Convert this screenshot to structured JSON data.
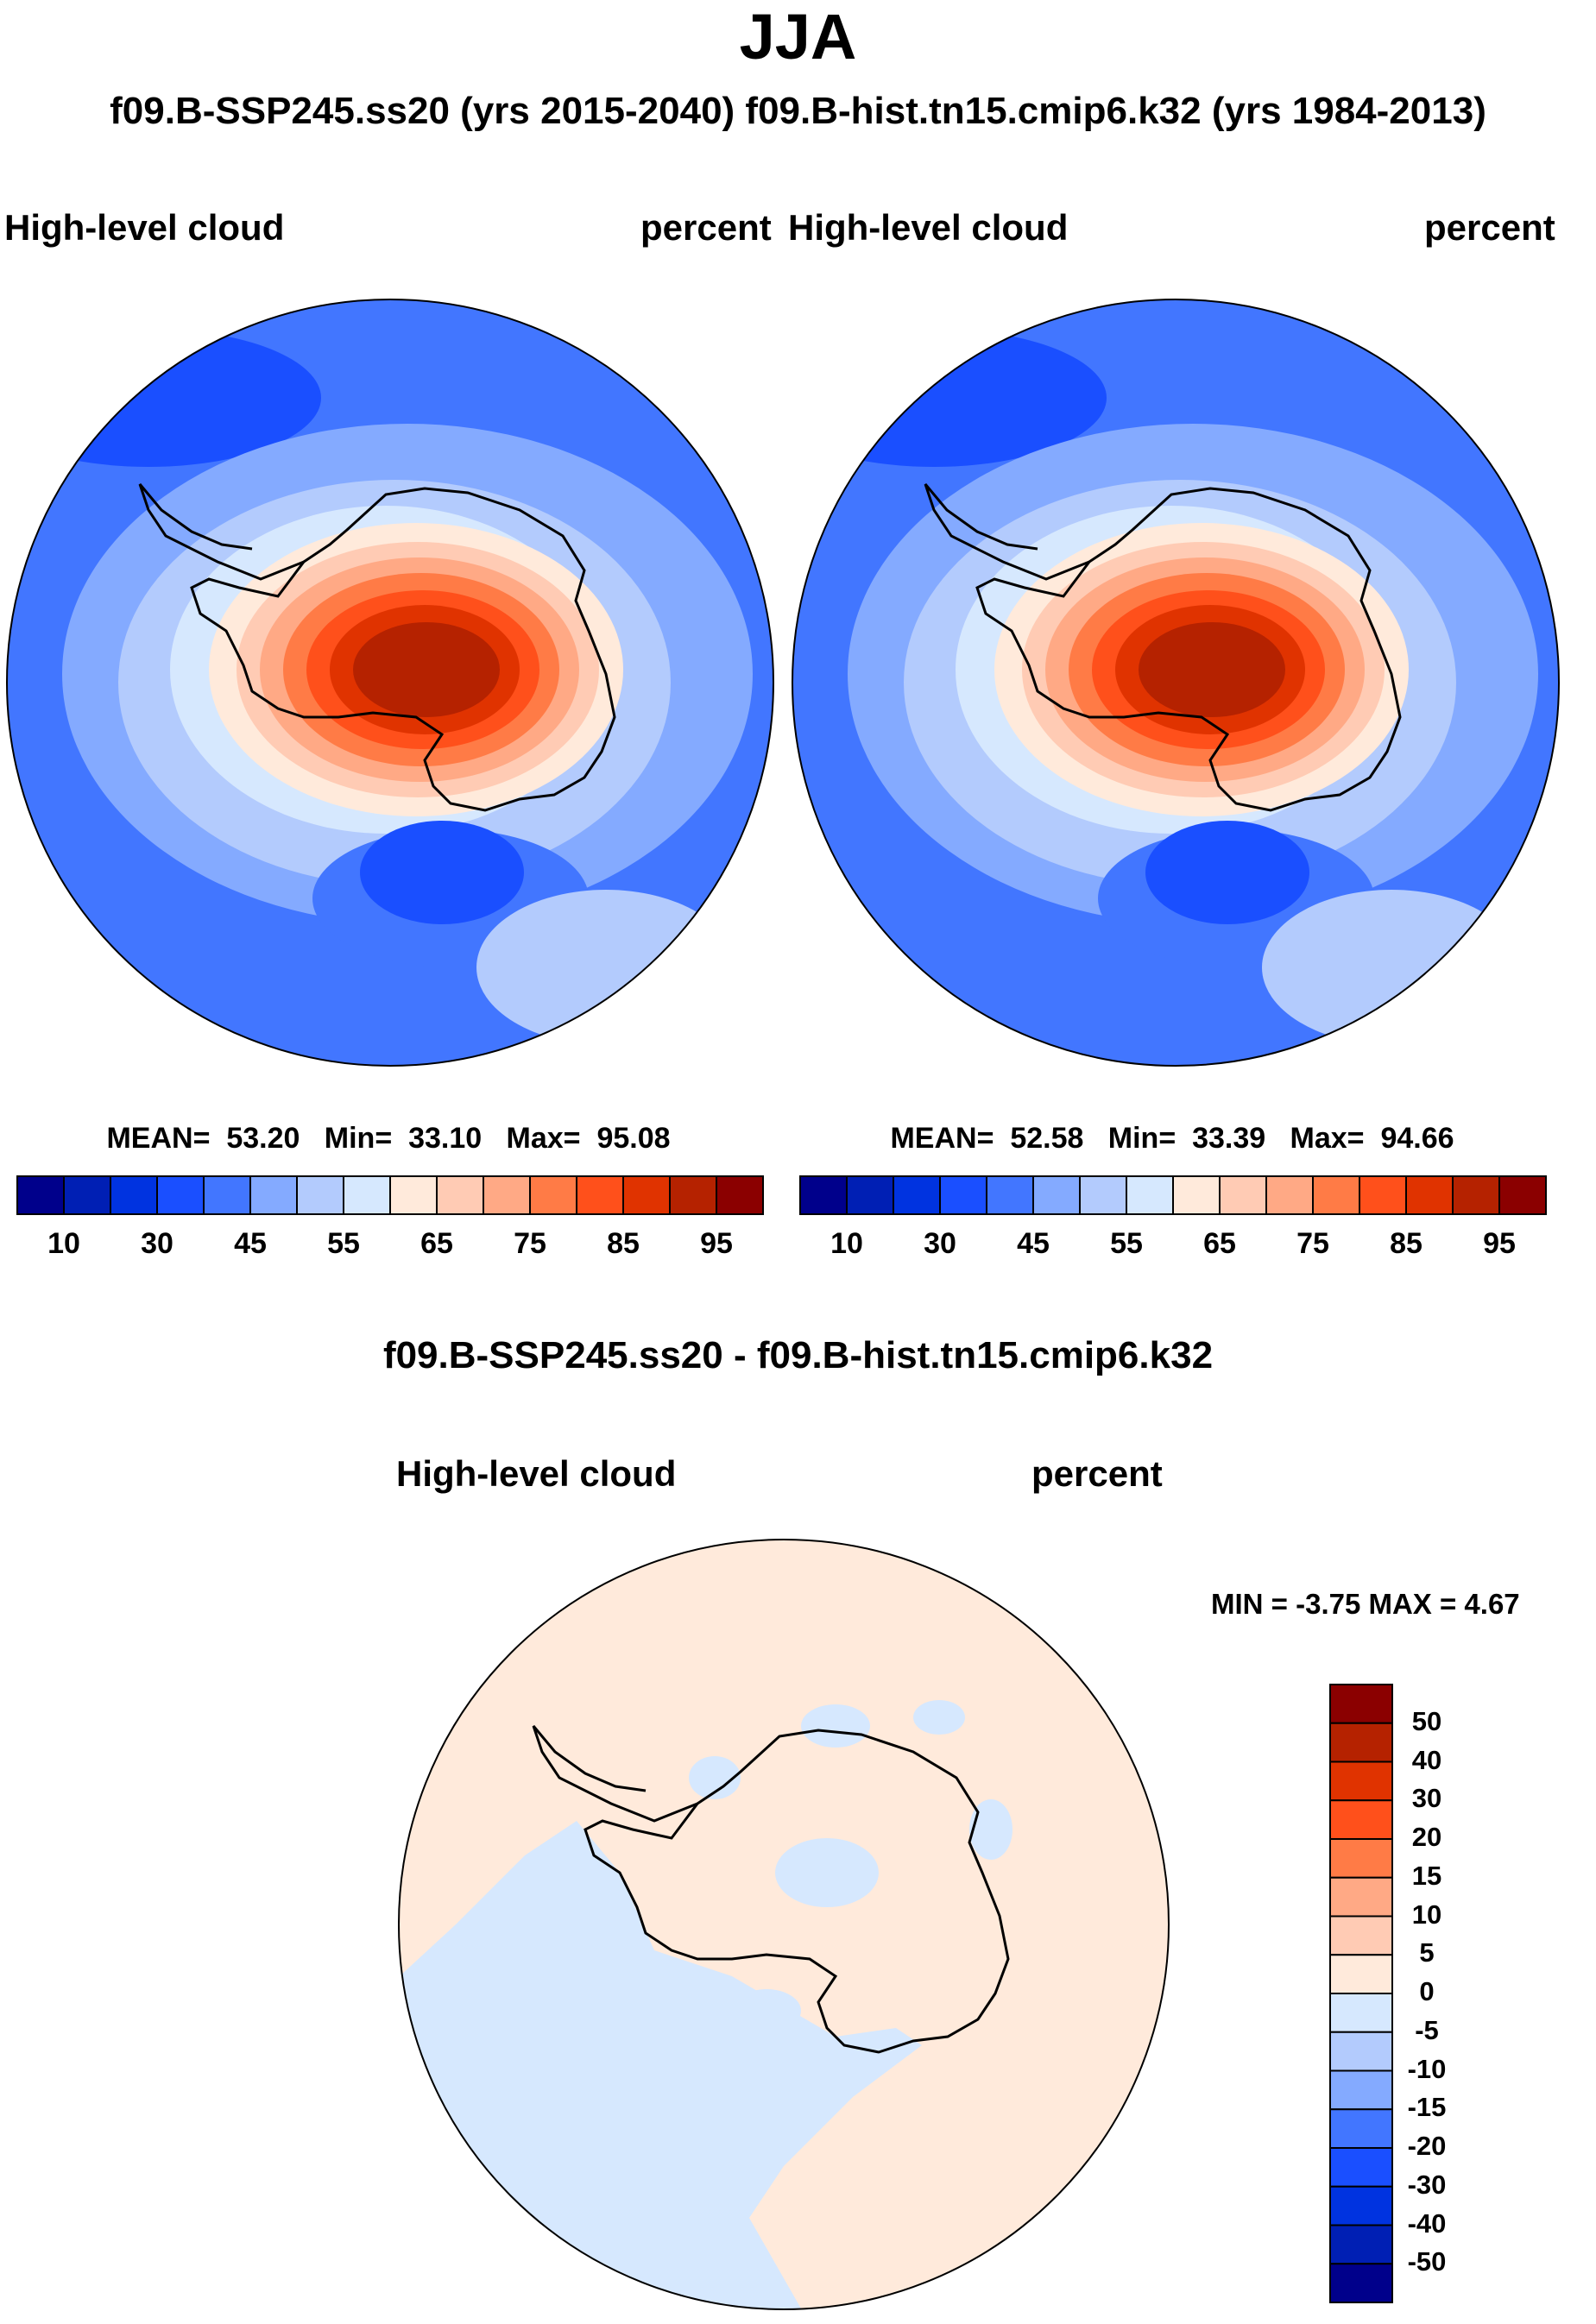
{
  "title": "JJA",
  "subtitle": "f09.B-SSP245.ss20 (yrs 2015-2040)  f09.B-hist.tn15.cmip6.k32 (yrs 1984-2013)",
  "colors": [
    "#00008b",
    "#001fb4",
    "#0033e0",
    "#1a4fff",
    "#4276ff",
    "#84aaff",
    "#b3cbfd",
    "#d6e8fe",
    "#ffeadb",
    "#ffcbb4",
    "#ffa985",
    "#ff7b46",
    "#ff501b",
    "#e03300",
    "#b52200",
    "#8b0000"
  ],
  "chart_data": [
    {
      "type": "heatmap",
      "projection": "south-polar stereographic",
      "case": "f09.B-SSP245.ss20 (yrs 2015-2040)",
      "left_label": "High-level cloud",
      "right_label": "percent",
      "stats": {
        "mean_label": "MEAN=",
        "mean": "53.20",
        "min_label": "Min=",
        "min": "33.10",
        "max_label": "Max=",
        "max": "95.08"
      },
      "colorbar_labels": [
        "10",
        "30",
        "45",
        "55",
        "65",
        "75",
        "85",
        "95"
      ]
    },
    {
      "type": "heatmap",
      "projection": "south-polar stereographic",
      "case": "f09.B-hist.tn15.cmip6.k32 (yrs 1984-2013)",
      "left_label": "High-level cloud",
      "right_label": "percent",
      "stats": {
        "mean_label": "MEAN=",
        "mean": "52.58",
        "min_label": "Min=",
        "min": "33.39",
        "max_label": "Max=",
        "max": "94.66"
      },
      "colorbar_labels": [
        "10",
        "30",
        "45",
        "55",
        "65",
        "75",
        "85",
        "95"
      ]
    },
    {
      "type": "heatmap",
      "projection": "south-polar stereographic",
      "title": "f09.B-SSP245.ss20 - f09.B-hist.tn15.cmip6.k32",
      "left_label": "High-level cloud",
      "right_label": "percent",
      "stats_text": "MIN =  -3.75 MAX =   4.67",
      "colorbar_labels": [
        "50",
        "40",
        "30",
        "20",
        "15",
        "10",
        "5",
        "0",
        "-5",
        "-10",
        "-15",
        "-20",
        "-30",
        "-40",
        "-50"
      ]
    }
  ]
}
